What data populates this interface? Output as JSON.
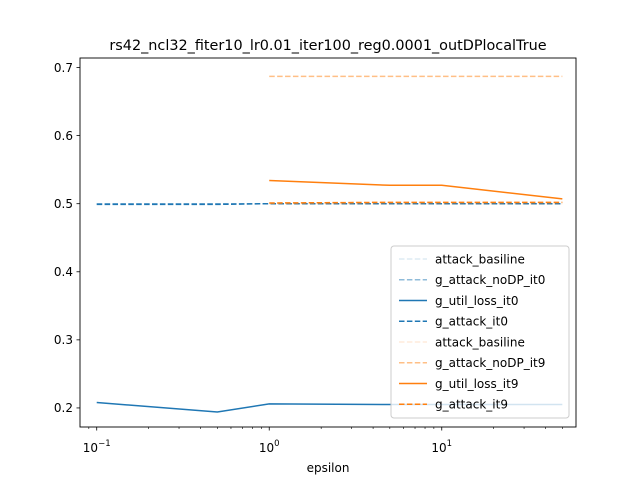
{
  "chart_data": {
    "type": "line",
    "title": "rs42_ncl32_fiter10_lr0.01_iter100_reg0.0001_outDPlocalTrue",
    "xlabel": "epsilon",
    "ylabel": "",
    "xscale": "log",
    "xlim": [
      0.08,
      60
    ],
    "ylim": [
      0.172,
      0.714
    ],
    "x_ticks": [
      {
        "value": 0.1,
        "base": "10",
        "exp": "−1"
      },
      {
        "value": 1,
        "base": "10",
        "exp": "0"
      },
      {
        "value": 10,
        "base": "10",
        "exp": "1"
      }
    ],
    "y_ticks": [
      {
        "value": 0.2,
        "label": "0.2"
      },
      {
        "value": 0.3,
        "label": "0.3"
      },
      {
        "value": 0.4,
        "label": "0.4"
      },
      {
        "value": 0.5,
        "label": "0.5"
      },
      {
        "value": 0.6,
        "label": "0.6"
      },
      {
        "value": 0.7,
        "label": "0.7"
      }
    ],
    "grid": false,
    "legend_position": "lower right",
    "series": [
      {
        "name": "attack_basiline",
        "color": "#1f77b4",
        "dash": "dashed",
        "alpha": 0.15,
        "x": [
          0.1,
          0.5,
          1,
          5,
          50
        ],
        "y": [
          0.5,
          0.5,
          0.5,
          0.5,
          0.5
        ]
      },
      {
        "name": "g_attack_noDP_it0",
        "color": "#1f77b4",
        "dash": "dashed",
        "alpha": 0.5,
        "x": [
          0.1,
          0.5,
          1,
          5,
          50
        ],
        "y": [
          0.5,
          0.5,
          0.5,
          0.5,
          0.5
        ]
      },
      {
        "name": "g_util_loss_it0",
        "color": "#1f77b4",
        "dash": "solid",
        "alpha": 1,
        "x": [
          0.1,
          0.5,
          1,
          5,
          50
        ],
        "y": [
          0.208,
          0.194,
          0.206,
          0.205,
          0.205
        ]
      },
      {
        "name": "g_attack_it0",
        "color": "#1f77b4",
        "dash": "dashed",
        "alpha": 1,
        "x": [
          0.1,
          0.5,
          1,
          5,
          50
        ],
        "y": [
          0.499,
          0.499,
          0.5,
          0.5,
          0.5
        ]
      },
      {
        "name": "attack_basiline",
        "color": "#ff7f0e",
        "dash": "dashed",
        "alpha": 0.15,
        "x": [
          1,
          5,
          10,
          50
        ],
        "y": [
          0.5,
          0.5,
          0.5,
          0.5
        ]
      },
      {
        "name": "g_attack_noDP_it9",
        "color": "#ff7f0e",
        "dash": "dashed",
        "alpha": 0.5,
        "x": [
          1,
          5,
          10,
          50
        ],
        "y": [
          0.687,
          0.687,
          0.687,
          0.687
        ]
      },
      {
        "name": "g_util_loss_it9",
        "color": "#ff7f0e",
        "dash": "solid",
        "alpha": 1,
        "x": [
          1,
          5,
          10,
          50
        ],
        "y": [
          0.534,
          0.527,
          0.527,
          0.507
        ]
      },
      {
        "name": "g_attack_it9",
        "color": "#ff7f0e",
        "dash": "dashed",
        "alpha": 1,
        "x": [
          1,
          5,
          10,
          50
        ],
        "y": [
          0.501,
          0.502,
          0.502,
          0.502
        ]
      }
    ]
  }
}
